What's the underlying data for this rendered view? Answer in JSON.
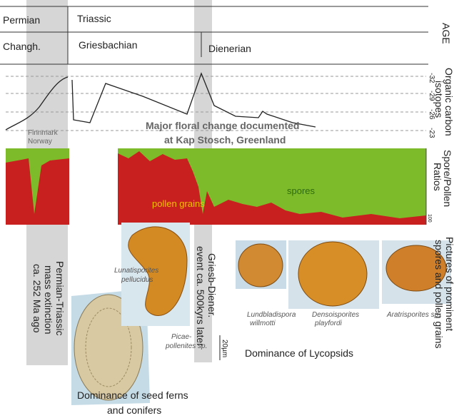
{
  "age_rows": {
    "period": [
      "Permian",
      "Triassic"
    ],
    "stage": [
      "Changh.",
      "Griesbachian",
      "Dienerian"
    ],
    "label": "AGE"
  },
  "isotopes": {
    "label": [
      "Organic carbon",
      "isotopes"
    ],
    "ticks": [
      "-32",
      "-29",
      "-26",
      "-23"
    ],
    "locality": [
      "Finnmark",
      "Norway"
    ]
  },
  "headline": [
    "Major floral change documented",
    "at Kap Stosch, Greenland"
  ],
  "ratios": {
    "label": [
      "Spore/Pollen",
      "Ratios"
    ],
    "pollen": "pollen grains",
    "spores": "spores",
    "scale": "100"
  },
  "events": [
    [
      "Permian-Triassic",
      "mass extinction",
      "ca. 252 Ma ago"
    ],
    [
      "Griesb-Diener.",
      "event  ca. 500kyrs later"
    ]
  ],
  "pictures": {
    "label": [
      "Pictures of prominent",
      "spores and pollen grains"
    ],
    "specimens": [
      [
        "Lunatisporites",
        "pellucidus"
      ],
      [
        "Picae-",
        "pollenites sp."
      ],
      [
        "Lundbladispora",
        "willmotti"
      ],
      [
        "Densoisporites",
        "playfordi"
      ],
      [
        "Aratrisporites sp."
      ]
    ],
    "scale": "20µm"
  },
  "captions": {
    "lycopsids": "Dominance of Lycopsids",
    "seed_ferns": [
      "Dominance of seed ferns",
      "and conifers"
    ]
  }
}
